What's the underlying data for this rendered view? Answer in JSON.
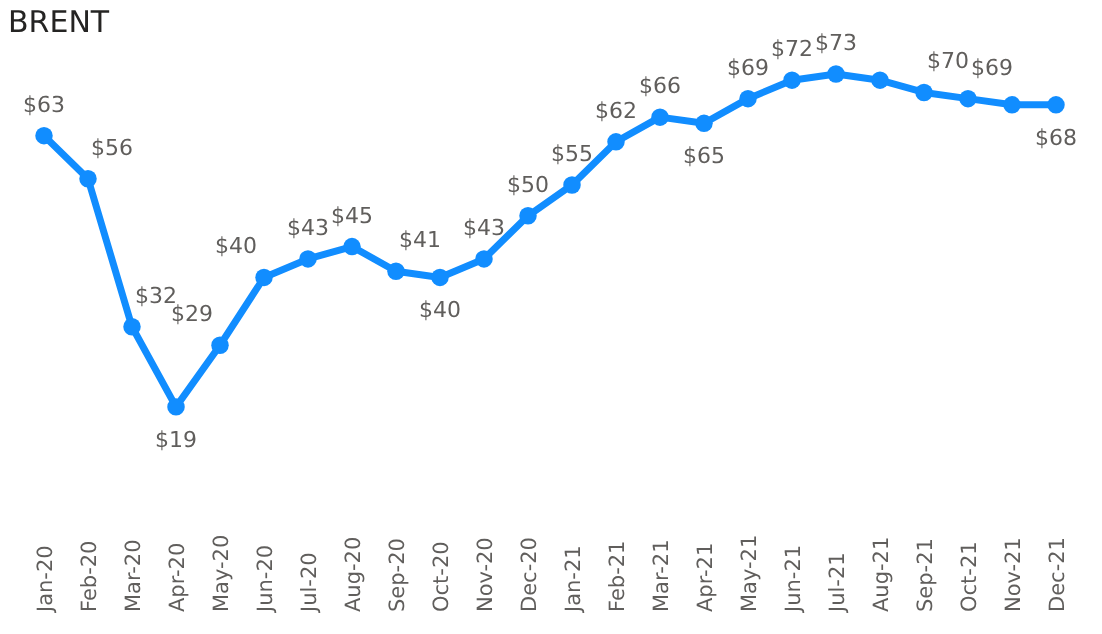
{
  "chart_data": {
    "type": "line",
    "title": "BRENT",
    "categories": [
      "Jan-20",
      "Feb-20",
      "Mar-20",
      "Apr-20",
      "May-20",
      "Jun-20",
      "Jul-20",
      "Aug-20",
      "Sep-20",
      "Oct-20",
      "Nov-20",
      "Dec-20",
      "Jan-21",
      "Feb-21",
      "Mar-21",
      "Apr-21",
      "May-21",
      "Jun-21",
      "Jul-21",
      "Aug-21",
      "Sep-21",
      "Oct-21",
      "Nov-21",
      "Dec-21"
    ],
    "series": [
      {
        "color": "#118dff",
        "values": [
          63,
          56,
          32,
          19,
          29,
          40,
          43,
          45,
          41,
          40,
          43,
          50,
          55,
          62,
          66,
          65,
          69,
          72,
          73,
          72,
          70,
          69,
          68,
          68
        ],
        "value_labels": [
          "$63",
          "$56",
          "$32",
          "$19",
          "$29",
          "$40",
          "$43",
          "$45",
          "$41",
          "$40",
          "$43",
          "$50",
          "$55",
          "$62",
          "$66",
          "$65",
          "$69",
          "$72",
          "$73",
          null,
          "$70",
          "$69",
          null,
          "$68"
        ]
      }
    ],
    "marker": "circle"
  }
}
